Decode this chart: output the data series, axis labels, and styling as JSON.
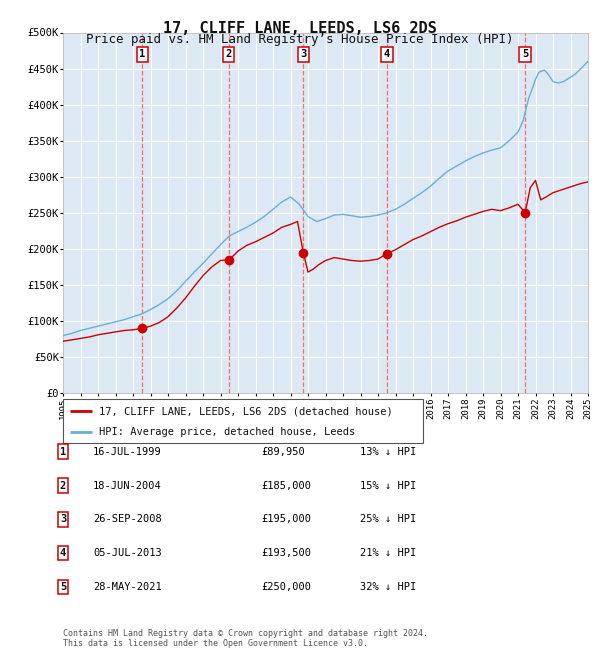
{
  "title": "17, CLIFF LANE, LEEDS, LS6 2DS",
  "subtitle": "Price paid vs. HM Land Registry’s House Price Index (HPI)",
  "title_fontsize": 11,
  "subtitle_fontsize": 9,
  "background_color": "#ffffff",
  "plot_bg_color": "#dce9f5",
  "grid_color": "#ffffff",
  "hpi_line_color": "#6aaed6",
  "price_line_color": "#cc0000",
  "sale_marker_color": "#cc0000",
  "dashed_line_color": "#ff5555",
  "ylim": [
    0,
    500000
  ],
  "yticks": [
    0,
    50000,
    100000,
    150000,
    200000,
    250000,
    300000,
    350000,
    400000,
    450000,
    500000
  ],
  "sale_dates_x": [
    1999.54,
    2004.46,
    2008.73,
    2013.51,
    2021.41
  ],
  "sale_prices_y": [
    89950,
    185000,
    195000,
    193500,
    250000
  ],
  "sale_labels": [
    "1",
    "2",
    "3",
    "4",
    "5"
  ],
  "hpi_x": [
    1995.0,
    1995.5,
    1996.0,
    1996.5,
    1997.0,
    1997.5,
    1998.0,
    1998.5,
    1999.0,
    1999.5,
    2000.0,
    2000.5,
    2001.0,
    2001.5,
    2002.0,
    2002.5,
    2003.0,
    2003.5,
    2004.0,
    2004.5,
    2005.0,
    2005.5,
    2006.0,
    2006.5,
    2007.0,
    2007.5,
    2008.0,
    2008.5,
    2009.0,
    2009.5,
    2010.0,
    2010.5,
    2011.0,
    2011.5,
    2012.0,
    2012.5,
    2013.0,
    2013.5,
    2014.0,
    2014.5,
    2015.0,
    2015.5,
    2016.0,
    2016.5,
    2017.0,
    2017.5,
    2018.0,
    2018.5,
    2019.0,
    2019.5,
    2020.0,
    2020.5,
    2021.0,
    2021.3,
    2021.6,
    2021.9,
    2022.0,
    2022.2,
    2022.5,
    2022.7,
    2023.0,
    2023.3,
    2023.6,
    2024.0,
    2024.3,
    2024.6,
    2025.0
  ],
  "hpi_y": [
    80000,
    83000,
    87000,
    90000,
    93000,
    96000,
    99000,
    102000,
    106000,
    110000,
    116000,
    123000,
    131000,
    142000,
    155000,
    168000,
    180000,
    193000,
    206000,
    218000,
    224000,
    230000,
    237000,
    245000,
    255000,
    265000,
    272000,
    262000,
    245000,
    238000,
    242000,
    247000,
    248000,
    246000,
    244000,
    245000,
    247000,
    250000,
    255000,
    262000,
    270000,
    278000,
    287000,
    298000,
    308000,
    315000,
    322000,
    328000,
    333000,
    337000,
    340000,
    350000,
    362000,
    378000,
    408000,
    428000,
    435000,
    445000,
    448000,
    443000,
    432000,
    430000,
    432000,
    438000,
    443000,
    450000,
    460000
  ],
  "price_x": [
    1995.0,
    1995.5,
    1996.0,
    1996.5,
    1997.0,
    1997.5,
    1998.0,
    1998.5,
    1999.0,
    1999.54,
    2000.0,
    2000.5,
    2001.0,
    2001.5,
    2002.0,
    2002.5,
    2003.0,
    2003.5,
    2004.0,
    2004.46,
    2004.8,
    2005.0,
    2005.5,
    2006.0,
    2006.5,
    2007.0,
    2007.5,
    2008.0,
    2008.4,
    2008.73,
    2009.0,
    2009.3,
    2009.6,
    2010.0,
    2010.5,
    2011.0,
    2011.5,
    2012.0,
    2012.5,
    2013.0,
    2013.51,
    2014.0,
    2014.5,
    2015.0,
    2015.5,
    2016.0,
    2016.5,
    2017.0,
    2017.5,
    2018.0,
    2018.5,
    2019.0,
    2019.5,
    2020.0,
    2020.5,
    2021.0,
    2021.41,
    2021.7,
    2022.0,
    2022.3,
    2022.6,
    2023.0,
    2023.5,
    2024.0,
    2024.5,
    2025.0
  ],
  "price_y": [
    72000,
    74000,
    76000,
    78000,
    81000,
    83000,
    85000,
    87000,
    88000,
    89950,
    93000,
    98000,
    106000,
    118000,
    132000,
    148000,
    163000,
    175000,
    184000,
    185000,
    192000,
    197000,
    205000,
    210000,
    216000,
    222000,
    230000,
    234000,
    238000,
    195000,
    168000,
    172000,
    178000,
    184000,
    188000,
    186000,
    184000,
    183000,
    184000,
    186000,
    193500,
    199000,
    206000,
    213000,
    218000,
    224000,
    230000,
    235000,
    239000,
    244000,
    248000,
    252000,
    255000,
    253000,
    257000,
    262000,
    250000,
    285000,
    295000,
    268000,
    272000,
    278000,
    282000,
    286000,
    290000,
    293000
  ],
  "sale_info": [
    {
      "label": "1",
      "date": "16-JUL-1999",
      "price": "£89,950",
      "pct": "13% ↓ HPI"
    },
    {
      "label": "2",
      "date": "18-JUN-2004",
      "price": "£185,000",
      "pct": "15% ↓ HPI"
    },
    {
      "label": "3",
      "date": "26-SEP-2008",
      "price": "£195,000",
      "pct": "25% ↓ HPI"
    },
    {
      "label": "4",
      "date": "05-JUL-2013",
      "price": "£193,500",
      "pct": "21% ↓ HPI"
    },
    {
      "label": "5",
      "date": "28-MAY-2021",
      "price": "£250,000",
      "pct": "32% ↓ HPI"
    }
  ],
  "legend_line1": "17, CLIFF LANE, LEEDS, LS6 2DS (detached house)",
  "legend_line2": "HPI: Average price, detached house, Leeds",
  "footnote": "Contains HM Land Registry data © Crown copyright and database right 2024.\nThis data is licensed under the Open Government Licence v3.0."
}
